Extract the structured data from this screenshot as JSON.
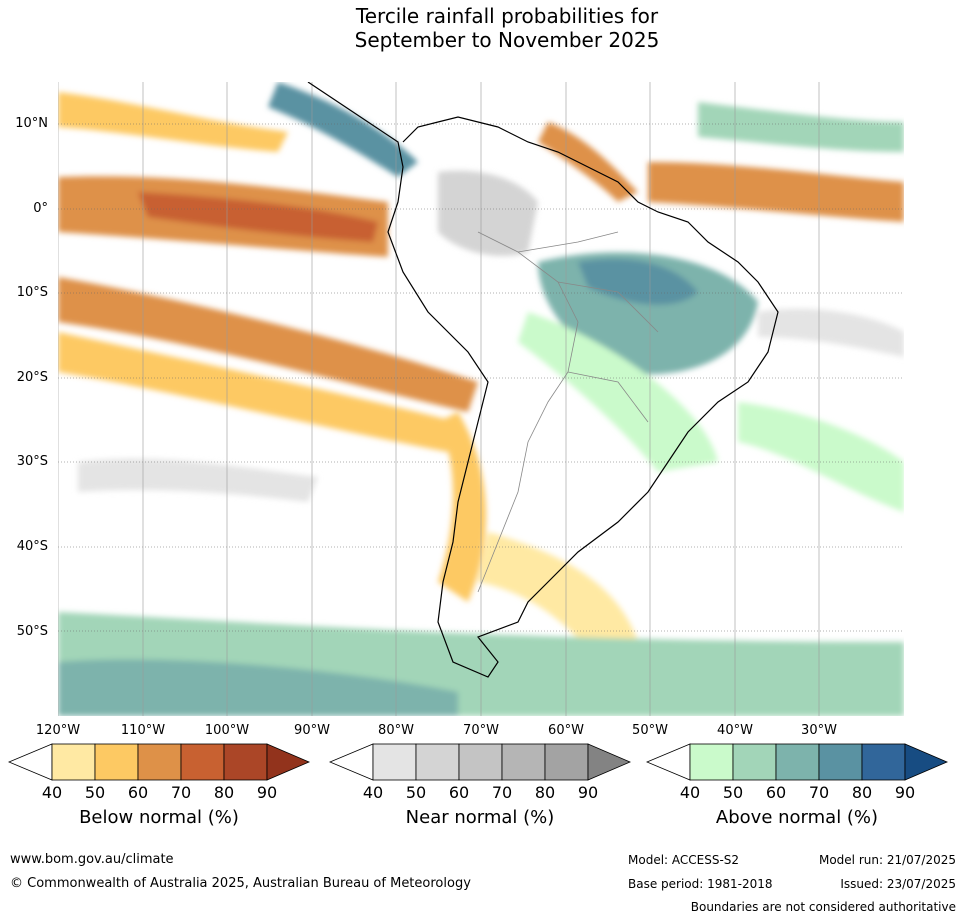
{
  "title": {
    "line1": "Tercile rainfall probabilities for",
    "line2": "September to November 2025"
  },
  "map": {
    "lat_labels": [
      "10°N",
      "0°",
      "10°S",
      "20°S",
      "30°S",
      "40°S",
      "50°S"
    ],
    "lon_labels": [
      "120°W",
      "110°W",
      "100°W",
      "90°W",
      "80°W",
      "70°W",
      "60°W",
      "50°W",
      "40°W",
      "30°W"
    ]
  },
  "legend": {
    "below": {
      "title": "Below normal (%)",
      "ticks": [
        "40",
        "50",
        "60",
        "70",
        "80",
        "90"
      ],
      "colors": [
        "#ffffff",
        "#ffe9a3",
        "#fdc963",
        "#de9148",
        "#c86131",
        "#ab4627",
        "#92331c"
      ]
    },
    "near": {
      "title": "Near normal (%)",
      "ticks": [
        "40",
        "50",
        "60",
        "70",
        "80",
        "90"
      ],
      "colors": [
        "#ffffff",
        "#e4e4e4",
        "#d4d4d4",
        "#c4c4c4",
        "#b5b5b5",
        "#a3a3a3",
        "#838383"
      ]
    },
    "above": {
      "title": "Above normal (%)",
      "ticks": [
        "40",
        "50",
        "60",
        "70",
        "80",
        "90"
      ],
      "colors": [
        "#ffffff",
        "#cafacb",
        "#a2d5b8",
        "#7db3ac",
        "#5a92a2",
        "#31669a",
        "#174c82"
      ]
    }
  },
  "footer": {
    "url": "www.bom.gov.au/climate",
    "copyright": "© Commonwealth of Australia 2025, Australian Bureau of Meteorology",
    "model": "Model: ACCESS-S2",
    "model_run": "Model run: 21/07/2025",
    "base_period": "Base period: 1981-2018",
    "issued": "Issued: 23/07/2025",
    "disclaimer": "Boundaries are not considered authoritative"
  }
}
